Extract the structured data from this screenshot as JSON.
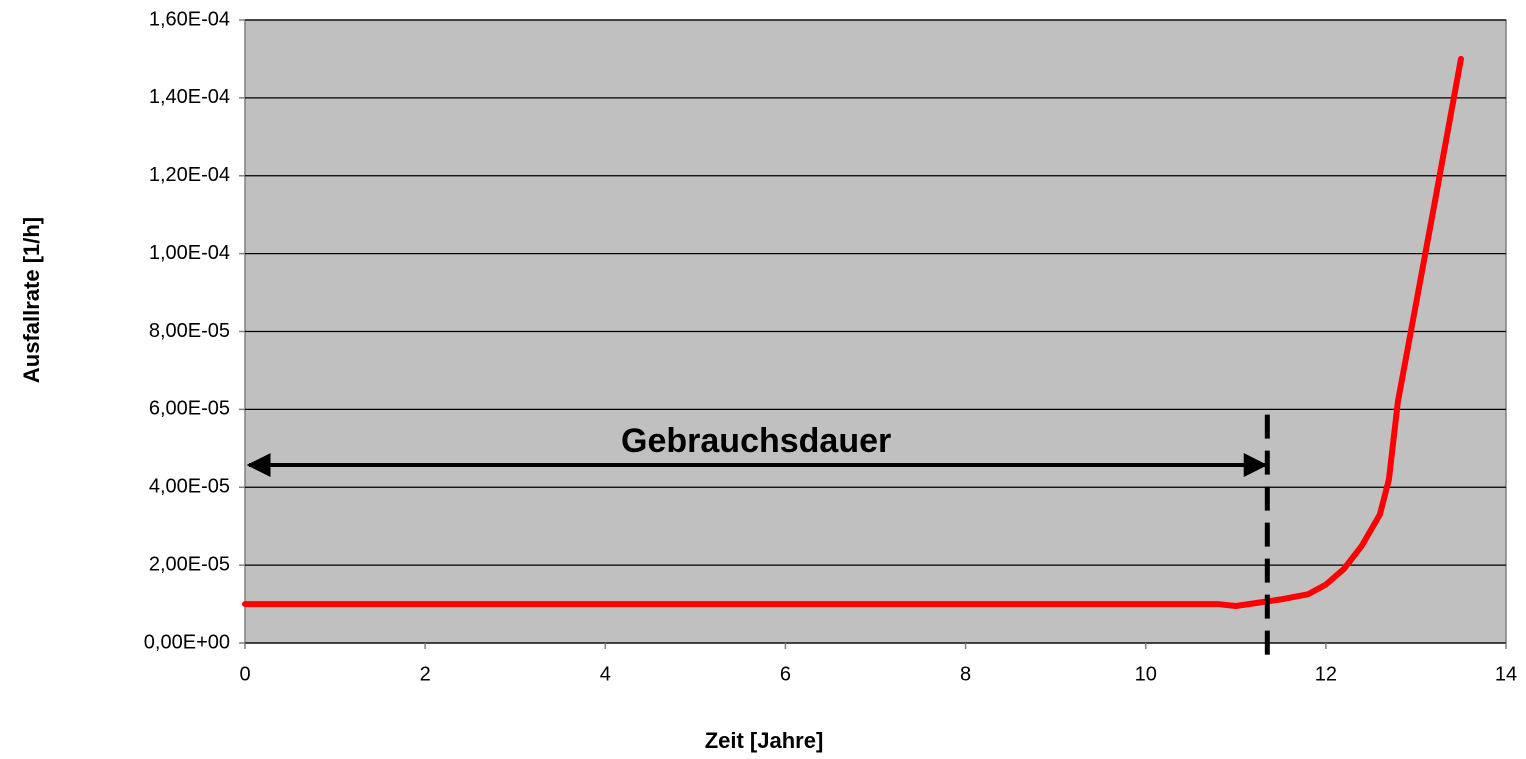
{
  "chart_data": {
    "type": "line",
    "xlabel": "Zeit [Jahre]",
    "ylabel": "Ausfallrate [1/h]",
    "x": [
      0,
      1,
      2,
      3,
      4,
      5,
      6,
      7,
      8,
      9,
      10,
      10.8,
      11,
      11.5,
      11.8,
      12,
      12.2,
      12.4,
      12.6,
      12.7,
      12.8,
      13,
      13.2,
      13.5
    ],
    "series": [
      {
        "color": "#ff0000",
        "values": [
          1e-05,
          1e-05,
          1e-05,
          1e-05,
          1e-05,
          1e-05,
          1e-05,
          1e-05,
          1e-05,
          1e-05,
          1e-05,
          1e-05,
          9.5e-06,
          1.12e-05,
          1.25e-05,
          1.5e-05,
          1.9e-05,
          2.5e-05,
          3.3e-05,
          4.2e-05,
          6.2e-05,
          8.7e-05,
          0.000112,
          0.00015
        ]
      }
    ],
    "xlim": [
      0,
      14
    ],
    "xticks": [
      0,
      2,
      4,
      6,
      8,
      10,
      12,
      14
    ],
    "ylim": [
      0,
      0.00016
    ],
    "yticks": [
      {
        "value": 0,
        "label": "0,00E+00"
      },
      {
        "value": 2e-05,
        "label": "2,00E-05"
      },
      {
        "value": 4e-05,
        "label": "4,00E-05"
      },
      {
        "value": 6e-05,
        "label": "6,00E-05"
      },
      {
        "value": 8e-05,
        "label": "8,00E-05"
      },
      {
        "value": 0.0001,
        "label": "1,00E-04"
      },
      {
        "value": 0.00012,
        "label": "1,20E-04"
      },
      {
        "value": 0.00014,
        "label": "1,40E-04"
      },
      {
        "value": 0.00016,
        "label": "1,60E-04"
      }
    ],
    "grid": true,
    "annotation": {
      "text": "Gebrauchsdauer",
      "x": [
        0,
        11.35
      ],
      "y": 4.57e-05
    },
    "vline": {
      "x": 11.35,
      "y": [
        -3e-06,
        6.1e-05
      ]
    }
  }
}
